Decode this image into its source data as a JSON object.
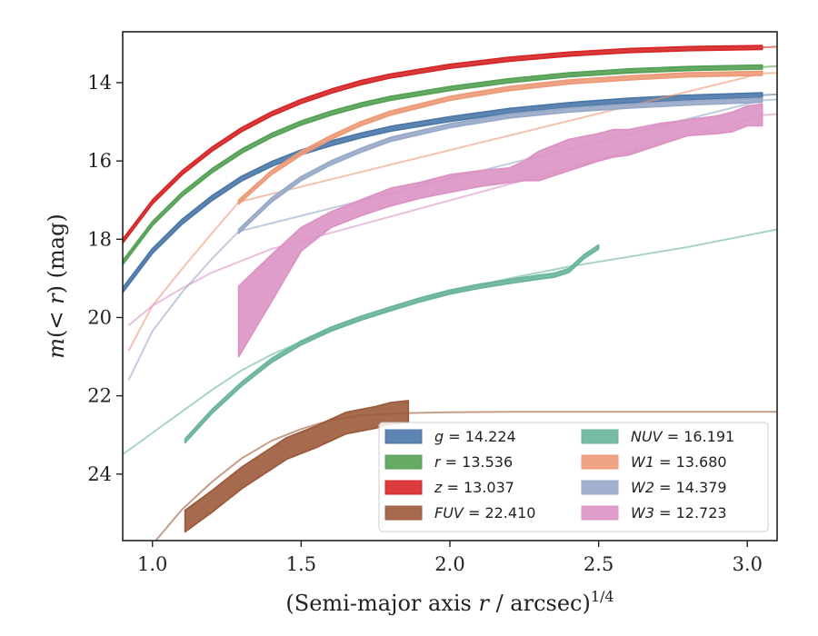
{
  "chart_data": {
    "type": "line",
    "xlabel_prefix": "(Semi-major axis ",
    "xlabel_var": "r",
    "xlabel_suffix": " / arcsec)",
    "xlabel_exp": "1/4",
    "ylabel_pre": "m",
    "ylabel_mid": "(< ",
    "ylabel_var": "r",
    "ylabel_post": ") (mag)",
    "xlim": [
      0.9,
      3.1
    ],
    "ylim": [
      25.7,
      12.7
    ],
    "y_inverted": true,
    "xticks": [
      "1.0",
      "1.5",
      "2.0",
      "2.5",
      "3.0"
    ],
    "xtick_values": [
      1.0,
      1.5,
      2.0,
      2.5,
      3.0
    ],
    "yticks": [
      "14",
      "16",
      "18",
      "20",
      "22",
      "24"
    ],
    "ytick_values": [
      14,
      16,
      18,
      20,
      22,
      24
    ],
    "grid": false,
    "legend_position": "lower-right",
    "series": [
      {
        "name": "g",
        "value": "14.224",
        "color": "#4c78a8",
        "band": {
          "x": [
            0.9,
            1.0,
            1.1,
            1.2,
            1.3,
            1.4,
            1.5,
            1.6,
            1.7,
            1.8,
            2.0,
            2.2,
            2.4,
            2.6,
            2.8,
            3.05
          ],
          "y": [
            19.3,
            18.3,
            17.55,
            16.95,
            16.45,
            16.08,
            15.78,
            15.55,
            15.35,
            15.18,
            14.93,
            14.72,
            14.57,
            14.46,
            14.38,
            14.32
          ],
          "width": 0.12
        },
        "thin": {
          "x": [
            3.05,
            3.1
          ],
          "y": [
            14.32,
            14.3
          ]
        }
      },
      {
        "name": "r",
        "value": "13.536",
        "color": "#55a155",
        "band": {
          "x": [
            0.9,
            1.0,
            1.1,
            1.2,
            1.3,
            1.4,
            1.5,
            1.6,
            1.7,
            1.8,
            2.0,
            2.2,
            2.4,
            2.6,
            2.8,
            3.05
          ],
          "y": [
            18.6,
            17.6,
            16.85,
            16.25,
            15.75,
            15.35,
            15.03,
            14.78,
            14.57,
            14.4,
            14.15,
            13.95,
            13.8,
            13.7,
            13.64,
            13.6
          ],
          "width": 0.1
        },
        "thin": {
          "x": [
            3.05,
            3.1
          ],
          "y": [
            13.6,
            13.58
          ]
        }
      },
      {
        "name": "z",
        "value": "13.037",
        "color": "#d62728",
        "band": {
          "x": [
            0.9,
            1.0,
            1.1,
            1.2,
            1.3,
            1.4,
            1.5,
            1.6,
            1.7,
            1.8,
            2.0,
            2.2,
            2.4,
            2.6,
            2.8,
            3.05
          ],
          "y": [
            18.05,
            17.05,
            16.3,
            15.7,
            15.2,
            14.8,
            14.48,
            14.22,
            14.0,
            13.83,
            13.58,
            13.4,
            13.27,
            13.18,
            13.13,
            13.1
          ],
          "width": 0.1
        },
        "thin": {
          "x": [
            3.05,
            3.1
          ],
          "y": [
            13.1,
            13.08
          ]
        }
      },
      {
        "name": "FUV",
        "value": "22.410",
        "color": "#9c5a3c",
        "band": {
          "x": [
            1.11,
            1.2,
            1.3,
            1.4,
            1.45,
            1.55,
            1.65,
            1.75,
            1.8,
            1.86
          ],
          "y": [
            25.2,
            24.7,
            24.1,
            23.6,
            23.35,
            23.05,
            22.7,
            22.55,
            22.45,
            22.4
          ],
          "width": 0.55
        },
        "thin": {
          "x": [
            0.9,
            1.0,
            1.1,
            1.2,
            1.3,
            1.4,
            1.5,
            1.6,
            1.7,
            1.86,
            2.0,
            2.2,
            2.5,
            2.8,
            3.1
          ],
          "y": [
            27.5,
            25.8,
            24.9,
            24.2,
            23.6,
            23.15,
            22.85,
            22.62,
            22.5,
            22.44,
            22.42,
            22.41,
            22.41,
            22.41,
            22.41
          ]
        }
      },
      {
        "name": "NUV",
        "value": "16.191",
        "color": "#6ab59a",
        "band": {
          "x": [
            1.11,
            1.2,
            1.3,
            1.4,
            1.5,
            1.6,
            1.7,
            1.8,
            1.9,
            2.0,
            2.1,
            2.2,
            2.3,
            2.35,
            2.4,
            2.45,
            2.5
          ],
          "y": [
            23.15,
            22.4,
            21.7,
            21.1,
            20.65,
            20.3,
            20.02,
            19.78,
            19.55,
            19.35,
            19.2,
            19.08,
            18.97,
            18.92,
            18.8,
            18.45,
            18.2
          ],
          "width": 0.1
        },
        "thin": {
          "x": [
            0.9,
            1.0,
            1.1,
            1.2,
            1.3,
            1.4,
            1.5,
            1.6,
            1.7,
            1.8,
            2.0,
            2.2,
            2.4,
            2.6,
            2.8,
            3.1
          ],
          "y": [
            23.5,
            22.95,
            22.4,
            21.85,
            21.35,
            20.95,
            20.62,
            20.32,
            20.05,
            19.8,
            19.35,
            19.0,
            18.7,
            18.45,
            18.2,
            17.75
          ]
        }
      },
      {
        "name": "W1",
        "value": "13.680",
        "color": "#ec9a78",
        "band": {
          "x": [
            1.29,
            1.4,
            1.5,
            1.6,
            1.7,
            1.8,
            2.0,
            2.2,
            2.4,
            2.6,
            2.8,
            3.05
          ],
          "y": [
            17.05,
            16.3,
            15.8,
            15.4,
            15.05,
            14.78,
            14.4,
            14.15,
            13.98,
            13.88,
            13.8,
            13.76
          ],
          "width": 0.1
        },
        "thin": {
          "x": [
            0.92,
            1.0,
            1.1,
            1.2,
            1.29,
            3.05,
            3.1
          ],
          "y": [
            20.85,
            19.7,
            18.75,
            17.85,
            17.05,
            13.76,
            13.75
          ]
        }
      },
      {
        "name": "W2",
        "value": "14.379",
        "color": "#98a9c8",
        "band": {
          "x": [
            1.29,
            1.4,
            1.5,
            1.6,
            1.7,
            1.8,
            2.0,
            2.2,
            2.4,
            2.6,
            2.8,
            3.05
          ],
          "y": [
            17.8,
            17.0,
            16.45,
            16.05,
            15.73,
            15.45,
            15.1,
            14.85,
            14.7,
            14.6,
            14.52,
            14.45
          ],
          "width": 0.1
        },
        "thin": {
          "x": [
            0.92,
            1.0,
            1.1,
            1.2,
            1.29,
            3.05,
            3.1
          ],
          "y": [
            21.6,
            20.35,
            19.35,
            18.5,
            17.8,
            14.45,
            14.43
          ]
        }
      },
      {
        "name": "W3",
        "value": "12.723",
        "color": "#dc93c4",
        "band_upper": {
          "x": [
            1.29,
            1.4,
            1.5,
            1.6,
            1.7,
            1.8,
            1.9,
            2.0,
            2.1,
            2.2,
            2.25,
            2.3,
            2.4,
            2.5,
            2.55,
            2.6,
            2.7,
            2.8,
            2.9,
            2.95,
            3.0,
            3.05
          ],
          "y": [
            19.2,
            18.4,
            17.7,
            17.3,
            17.0,
            16.7,
            16.55,
            16.35,
            16.25,
            16.18,
            16.0,
            15.75,
            15.45,
            15.3,
            15.2,
            15.2,
            15.05,
            14.95,
            14.85,
            14.75,
            14.6,
            14.55
          ]
        },
        "band_lower": {
          "x": [
            1.29,
            1.4,
            1.5,
            1.6,
            1.7,
            1.8,
            1.9,
            2.0,
            2.1,
            2.2,
            2.25,
            2.3,
            2.4,
            2.5,
            2.55,
            2.6,
            2.7,
            2.8,
            2.9,
            2.95,
            3.0,
            3.05
          ],
          "y": [
            21.0,
            19.6,
            18.3,
            17.7,
            17.4,
            17.15,
            16.95,
            16.8,
            16.65,
            16.55,
            16.5,
            16.5,
            16.25,
            16.0,
            15.9,
            15.85,
            15.6,
            15.35,
            15.3,
            15.25,
            15.1,
            15.1
          ]
        },
        "thin": {
          "x": [
            0.92,
            1.0,
            1.1,
            1.2,
            1.3,
            1.4,
            3.05,
            3.1
          ],
          "y": [
            20.2,
            19.7,
            19.25,
            18.85,
            18.55,
            18.25,
            14.83,
            14.8
          ]
        }
      }
    ],
    "legend": [
      {
        "var": "g",
        "value": "14.224",
        "color": "#4c78a8"
      },
      {
        "var": "r",
        "value": "13.536",
        "color": "#55a155"
      },
      {
        "var": "z",
        "value": "13.037",
        "color": "#d62728"
      },
      {
        "var": "FUV",
        "value": "22.410",
        "color": "#9c5a3c"
      },
      {
        "var": "NUV",
        "value": "16.191",
        "color": "#6ab59a"
      },
      {
        "var": "W1",
        "value": "13.680",
        "color": "#ec9a78"
      },
      {
        "var": "W2",
        "value": "14.379",
        "color": "#98a9c8"
      },
      {
        "var": "W3",
        "value": "12.723",
        "color": "#dc93c4"
      }
    ]
  }
}
